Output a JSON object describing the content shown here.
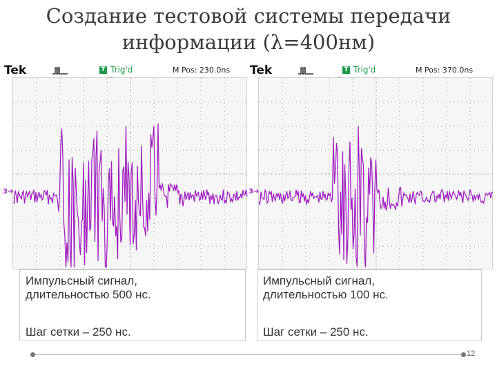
{
  "slide": {
    "title_line1": "Создание тестовой системы передачи",
    "title_line2": "информации (λ=400нм)",
    "page_number": "12"
  },
  "scopes": [
    {
      "brand": "Tek",
      "trigger_status": "Trig'd",
      "trigger_badge": "T",
      "position": "M Pos: 230.0ns",
      "channel_marker": "3➔",
      "trace_color": "#a020c0"
    },
    {
      "brand": "Tek",
      "trigger_status": "Trig'd",
      "trigger_badge": "T",
      "position": "M Pos: 370.0ns",
      "channel_marker": "3➔",
      "trace_color": "#a020c0"
    }
  ],
  "captions": [
    {
      "line1": "Импульсный сигнал,",
      "line1b": "длительностью 500 нс.",
      "line2": "Шаг сетки – 250 нс."
    },
    {
      "line1": "Импульсный сигнал,",
      "line1b": "длительностью 100 нс.",
      "line2": "Шаг сетки – 250 нс."
    }
  ]
}
